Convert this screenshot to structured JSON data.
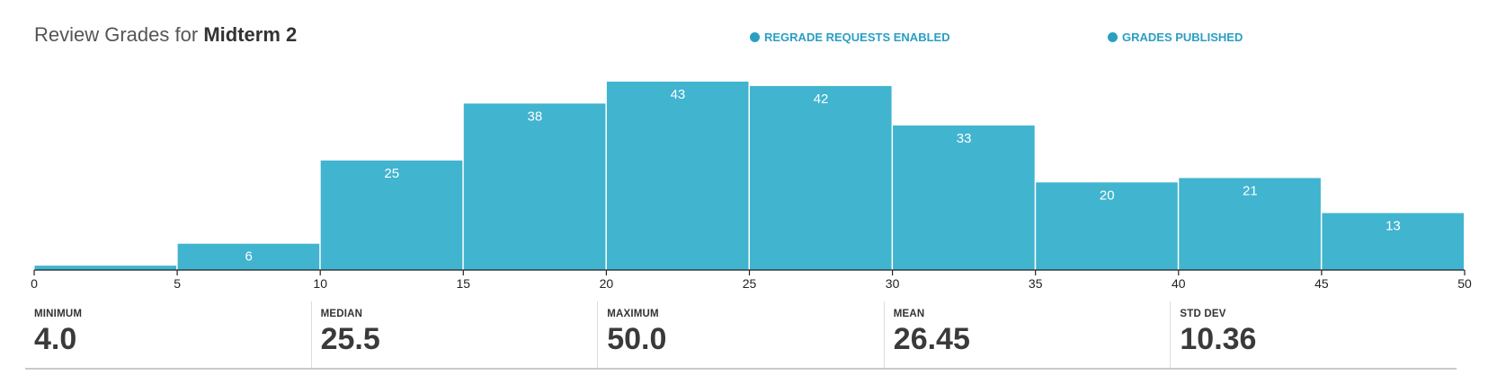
{
  "header": {
    "title_prefix": "Review Grades for",
    "exam_name": "Midterm 2",
    "status_regrade": "REGRADE REQUESTS ENABLED",
    "status_published": "GRADES PUBLISHED",
    "accent_color": "#2a9fc2",
    "bar_color": "#41b4cf"
  },
  "chart_data": {
    "type": "bar",
    "title": "",
    "xlabel": "",
    "ylabel": "",
    "bin_edges": [
      0,
      5,
      10,
      15,
      20,
      25,
      30,
      35,
      40,
      45,
      50
    ],
    "values": [
      1,
      6,
      25,
      38,
      43,
      42,
      33,
      20,
      21,
      13
    ],
    "value_labels": [
      "",
      "6",
      "25",
      "38",
      "43",
      "42",
      "33",
      "20",
      "21",
      "13"
    ],
    "tick_labels": [
      "0",
      "5",
      "10",
      "15",
      "20",
      "25",
      "30",
      "35",
      "40",
      "45",
      "50"
    ],
    "xlim": [
      0,
      50
    ],
    "ylim": [
      0,
      43
    ],
    "grid": false,
    "legend": "none"
  },
  "stats": [
    {
      "label": "MINIMUM",
      "value": "4.0"
    },
    {
      "label": "MEDIAN",
      "value": "25.5"
    },
    {
      "label": "MAXIMUM",
      "value": "50.0"
    },
    {
      "label": "MEAN",
      "value": "26.45"
    },
    {
      "label": "STD DEV",
      "value": "10.36"
    }
  ]
}
